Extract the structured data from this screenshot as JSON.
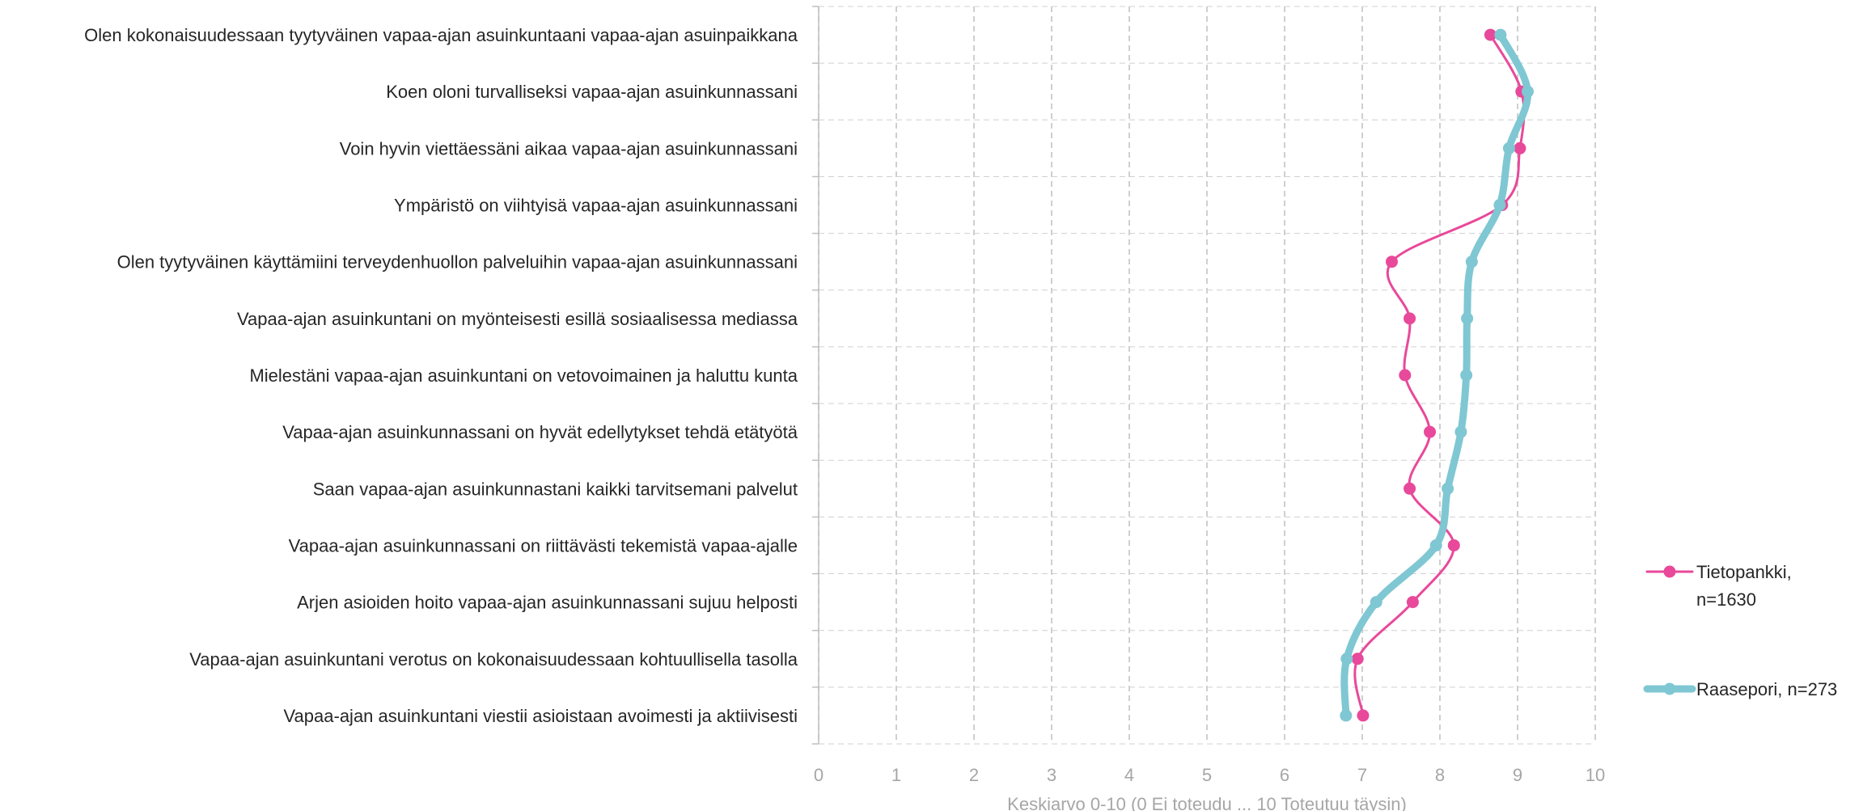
{
  "chart_data": {
    "type": "line",
    "orientation": "horizontal",
    "categories": [
      "Olen kokonaisuudessaan tyytyväinen vapaa-ajan asuinkuntaani vapaa-ajan asuinpaikkana",
      "Koen oloni turvalliseksi vapaa-ajan asuinkunnassani",
      "Voin hyvin viettäessäni aikaa vapaa-ajan asuinkunnassani",
      "Ympäristö on viihtyisä vapaa-ajan asuinkunnassani",
      "Olen tyytyväinen käyttämiini terveydenhuollon palveluihin vapaa-ajan asuinkunnassani",
      "Vapaa-ajan asuinkuntani on myönteisesti esillä sosiaalisessa mediassa",
      "Mielestäni vapaa-ajan asuinkuntani on vetovoimainen ja haluttu kunta",
      "Vapaa-ajan asuinkunnassani on hyvät edellytykset tehdä etätyötä",
      "Saan vapaa-ajan asuinkunnastani kaikki tarvitsemani palvelut",
      "Vapaa-ajan asuinkunnassani on riittävästi tekemistä vapaa-ajalle",
      "Arjen asioiden hoito vapaa-ajan asuinkunnassani sujuu helposti",
      "Vapaa-ajan asuinkuntani verotus on kokonaisuudessaan kohtuullisella tasolla",
      "Vapaa-ajan asuinkuntani viestii asioistaan avoimesti ja aktiivisesti"
    ],
    "series": [
      {
        "name": "Tietopankki, n=1630",
        "color": "#e8499a",
        "values": [
          8.65,
          9.05,
          9.03,
          8.8,
          7.38,
          7.61,
          7.55,
          7.87,
          7.61,
          8.18,
          7.65,
          6.94,
          7.01
        ]
      },
      {
        "name": "Raasepori, n=273",
        "color": "#7fc7d3",
        "values": [
          8.78,
          9.13,
          8.89,
          8.77,
          8.41,
          8.35,
          8.34,
          8.27,
          8.1,
          7.95,
          7.18,
          6.8,
          6.79
        ]
      }
    ],
    "xlim": [
      0,
      10
    ],
    "xticks": [
      "0",
      "1",
      "2",
      "3",
      "4",
      "5",
      "6",
      "7",
      "8",
      "9",
      "10"
    ],
    "xlabel": "Keskiarvo 0-10 (0 Ei toteudu ... 10 Toteutuu täysin)",
    "ylabel": "",
    "title": "",
    "grid": true,
    "legend": "right"
  }
}
